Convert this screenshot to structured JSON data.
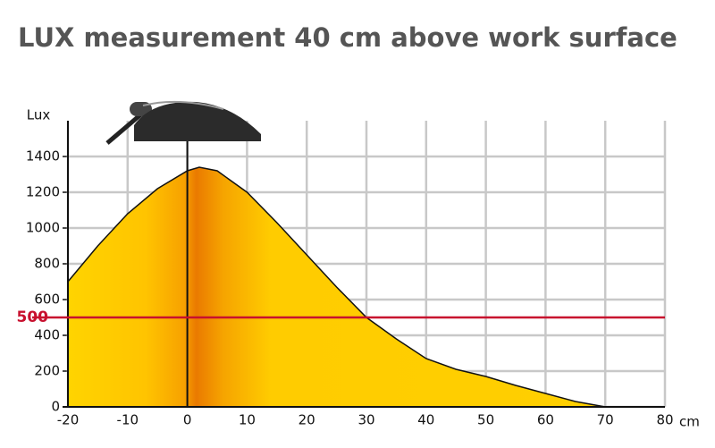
{
  "chart_data": {
    "type": "area",
    "title": "LUX measurement 40 cm above work surface",
    "x_label": "cm",
    "y_label": "Lux",
    "x": [
      -20,
      -15,
      -10,
      -5,
      0,
      2,
      5,
      10,
      15,
      20,
      25,
      30,
      35,
      40,
      45,
      50,
      55,
      60,
      65,
      70
    ],
    "values": [
      700,
      900,
      1080,
      1220,
      1320,
      1340,
      1320,
      1200,
      1030,
      850,
      670,
      500,
      380,
      270,
      210,
      170,
      120,
      75,
      30,
      0
    ],
    "xlim": [
      -20,
      80
    ],
    "xticks": [
      -20,
      -10,
      0,
      10,
      20,
      30,
      40,
      50,
      60,
      70,
      80
    ],
    "ylim": [
      0,
      1600
    ],
    "yticks": [
      0,
      200,
      400,
      600,
      800,
      1000,
      1200,
      1400
    ],
    "reference_line": {
      "value": 500,
      "label": 500,
      "color": "#c8102e"
    },
    "grid": true
  }
}
